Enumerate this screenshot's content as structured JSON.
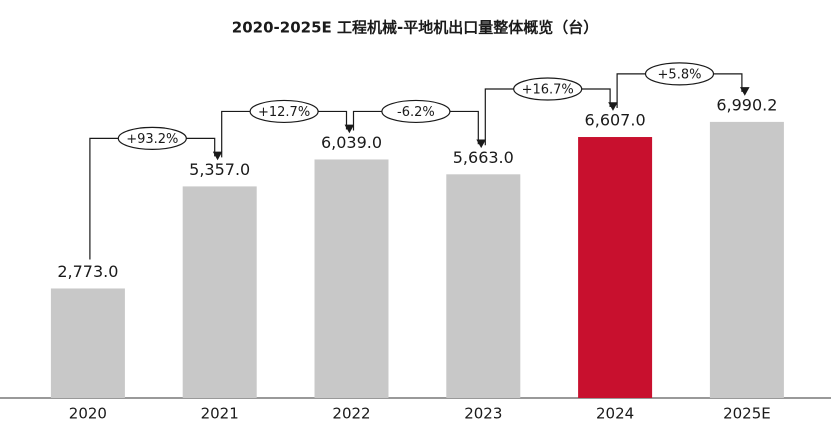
{
  "chart_data": {
    "type": "bar",
    "title": "2020-2025E 工程机械-平地机出口量整体概览（台）",
    "categories": [
      "2020",
      "2021",
      "2022",
      "2023",
      "2024",
      "2025E"
    ],
    "values": [
      2773.0,
      5357.0,
      6039.0,
      5663.0,
      6607.0,
      6990.2
    ],
    "value_labels": [
      "2,773.0",
      "5,357.0",
      "6,039.0",
      "5,663.0",
      "6,607.0",
      "6,990.2"
    ],
    "colors": [
      "#c8c8c8",
      "#c8c8c8",
      "#c8c8c8",
      "#c8c8c8",
      "#c8102e",
      "#c8c8c8"
    ],
    "annotations": [
      "+93.2%",
      "+12.7%",
      "-6.2%",
      "+16.7%",
      "+5.8%"
    ]
  }
}
